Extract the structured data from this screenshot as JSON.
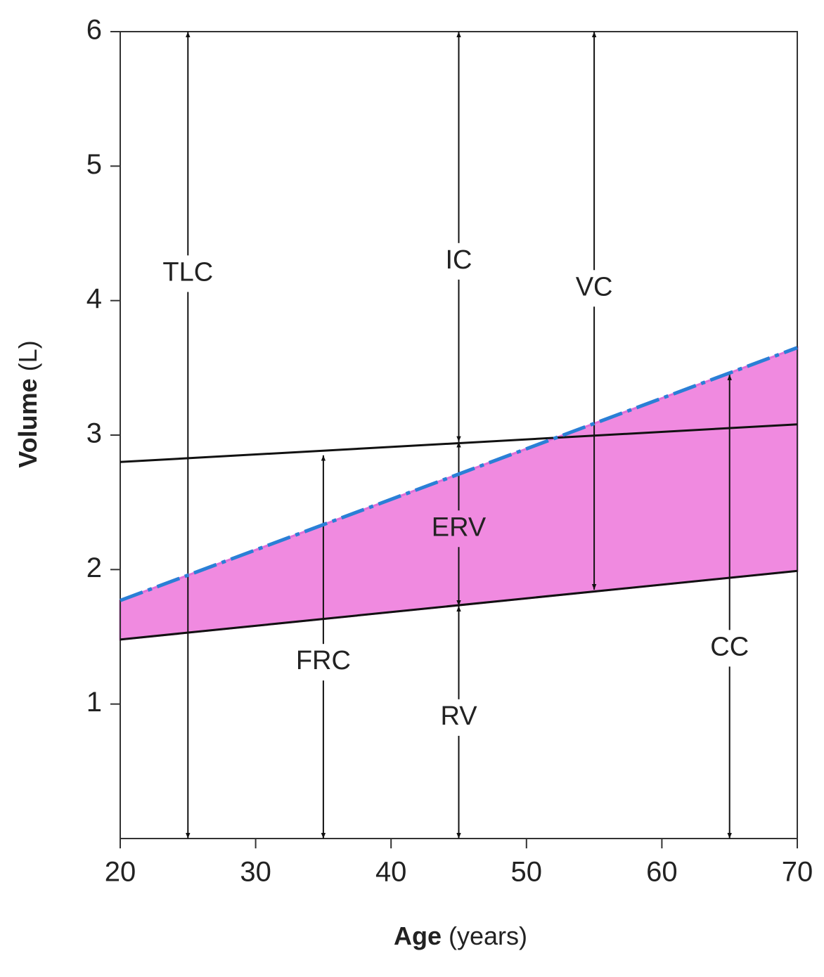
{
  "chart_data": {
    "type": "line",
    "x_label": [
      "Age",
      "(years)"
    ],
    "y_label": [
      "Volume",
      "(L)"
    ],
    "xlim": [
      20,
      70
    ],
    "xticks": [
      20,
      30,
      40,
      50,
      60,
      70
    ],
    "ylim": [
      0,
      6
    ],
    "yticks": [
      1,
      2,
      3,
      4,
      5,
      6
    ],
    "shaded_region": {
      "x": [
        20,
        70
      ],
      "lower": [
        1.48,
        1.99
      ],
      "upper": [
        1.77,
        3.65
      ],
      "color": "#f08ae0"
    },
    "series": [
      {
        "x": [
          20,
          70
        ],
        "values": [
          2.8,
          3.08
        ],
        "color": "#111111",
        "dashed": false
      },
      {
        "x": [
          20,
          70
        ],
        "values": [
          1.48,
          1.99
        ],
        "color": "#111111",
        "dashed": false
      },
      {
        "x": [
          20,
          70
        ],
        "values": [
          1.77,
          3.65
        ],
        "color": "#2a7fd6",
        "dashed": true
      }
    ],
    "arrows": [
      {
        "label": "TLC",
        "x": 25,
        "from": 0,
        "to": 6
      },
      {
        "label": "FRC",
        "x": 35,
        "from": 0,
        "to": 2.85
      },
      {
        "label": "IC",
        "x": 45,
        "from": 2.95,
        "to": 6
      },
      {
        "label": "ERV",
        "x": 45,
        "from": 1.73,
        "to": 2.95
      },
      {
        "label": "RV",
        "x": 45,
        "from": 0,
        "to": 1.73
      },
      {
        "label": "VC",
        "x": 55,
        "from": 1.85,
        "to": 6
      },
      {
        "label": "CC",
        "x": 65,
        "from": 0,
        "to": 3.45
      }
    ]
  }
}
